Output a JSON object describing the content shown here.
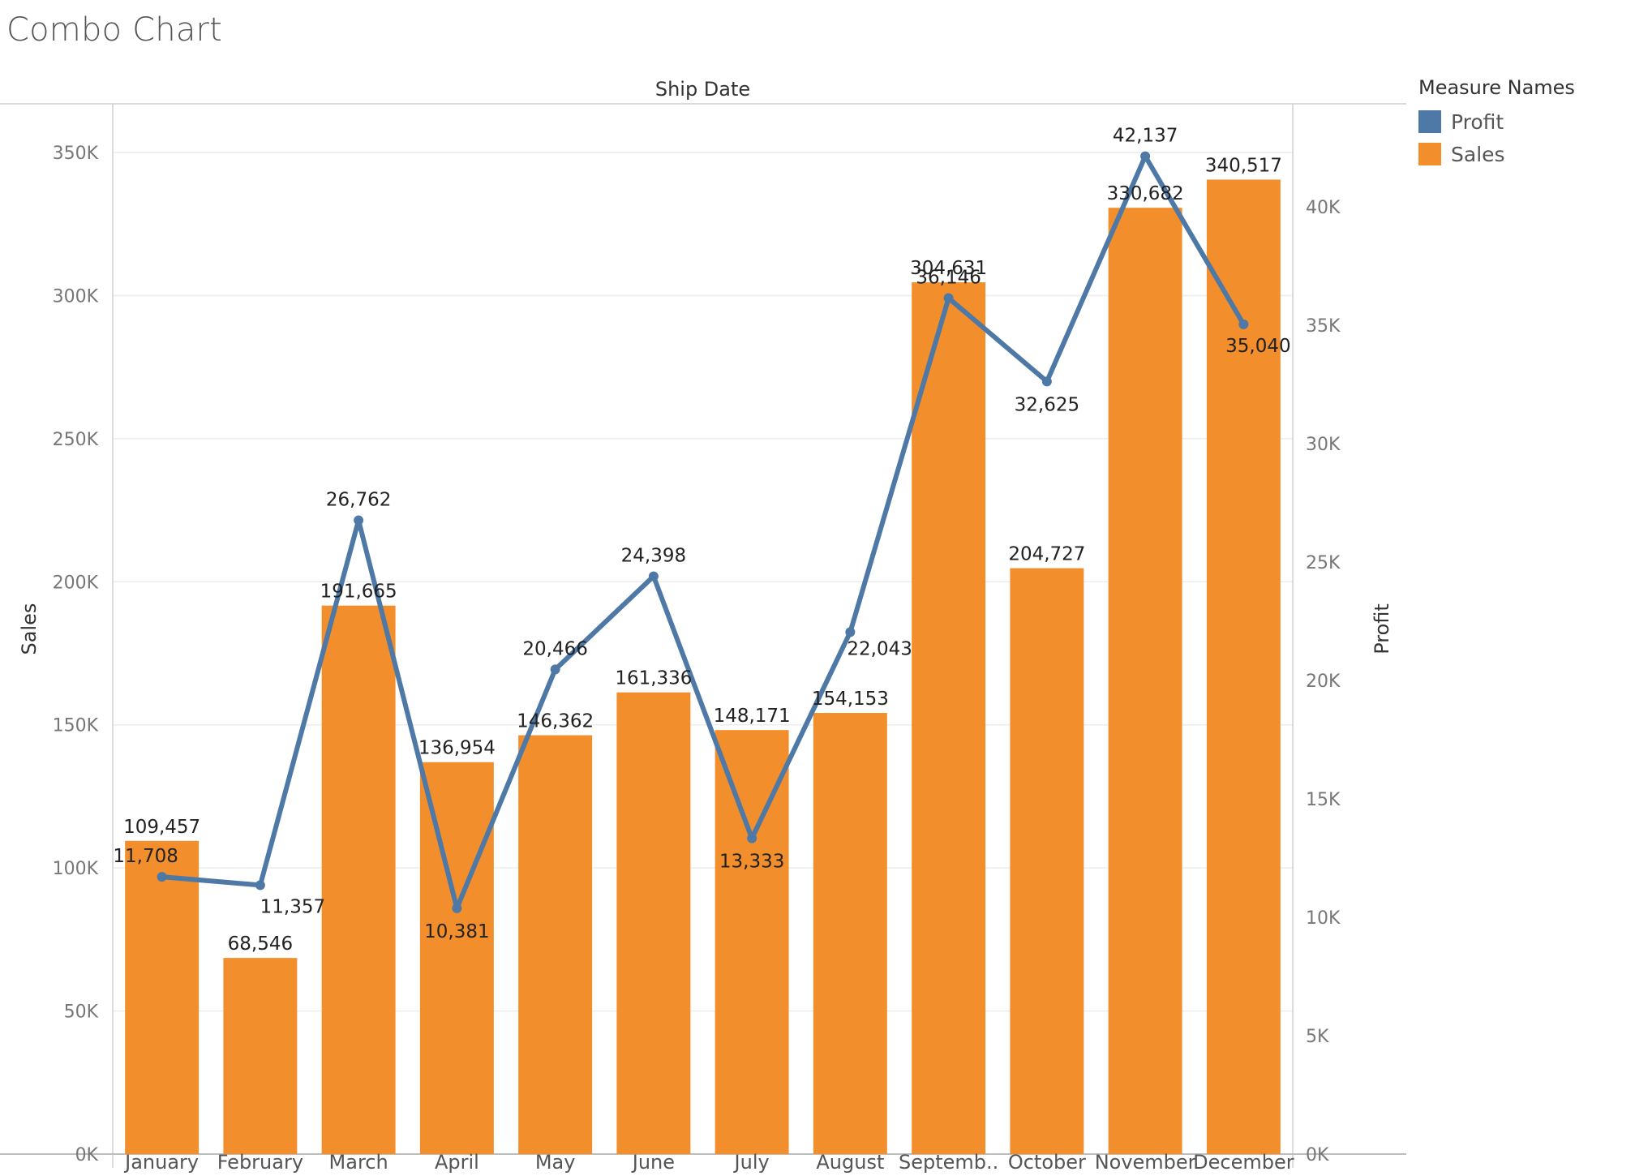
{
  "title": "Combo Chart",
  "chart_data": {
    "type": "bar",
    "combo": "bar + line (dual axis)",
    "column_header": "Ship Date",
    "categories": [
      "January",
      "February",
      "March",
      "April",
      "May",
      "June",
      "July",
      "August",
      "Septemb..",
      "October",
      "November",
      "December"
    ],
    "series": [
      {
        "name": "Sales",
        "type": "bar",
        "axis": "left",
        "color": "#F28E2B",
        "values": [
          109457,
          68546,
          191665,
          136954,
          146362,
          161336,
          148171,
          154153,
          304631,
          204727,
          330682,
          340517
        ],
        "labels": [
          "109,457",
          "68,546",
          "191,665",
          "136,954",
          "146,362",
          "161,336",
          "148,171",
          "154,153",
          "304,631",
          "204,727",
          "330,682",
          "340,517"
        ]
      },
      {
        "name": "Profit",
        "type": "line",
        "axis": "right",
        "color": "#4E79A7",
        "values": [
          11708,
          11357,
          26762,
          10381,
          20466,
          24398,
          13333,
          22043,
          36146,
          32625,
          42137,
          35040
        ],
        "labels": [
          "11,708",
          "11,357",
          "26,762",
          "10,381",
          "20,466",
          "24,398",
          "13,333",
          "22,043",
          "36,146",
          "32,625",
          "42,137",
          "35,040"
        ]
      }
    ],
    "y_left": {
      "label": "Sales",
      "ylim": [
        0,
        367000
      ],
      "ticks": [
        0,
        50000,
        100000,
        150000,
        200000,
        250000,
        300000,
        350000
      ],
      "tick_labels": [
        "0K",
        "50K",
        "100K",
        "150K",
        "200K",
        "250K",
        "300K",
        "350K"
      ]
    },
    "y_right": {
      "label": "Profit",
      "ylim": [
        0,
        44350
      ],
      "ticks": [
        0,
        5000,
        10000,
        15000,
        20000,
        25000,
        30000,
        35000,
        40000
      ],
      "tick_labels": [
        "0K",
        "5K",
        "10K",
        "15K",
        "20K",
        "25K",
        "30K",
        "35K",
        "40K"
      ]
    },
    "grid": true,
    "legend": {
      "title": "Measure Names",
      "placement": "right",
      "items": [
        {
          "label": "Profit",
          "color": "#4E79A7"
        },
        {
          "label": "Sales",
          "color": "#F28E2B"
        }
      ]
    }
  }
}
